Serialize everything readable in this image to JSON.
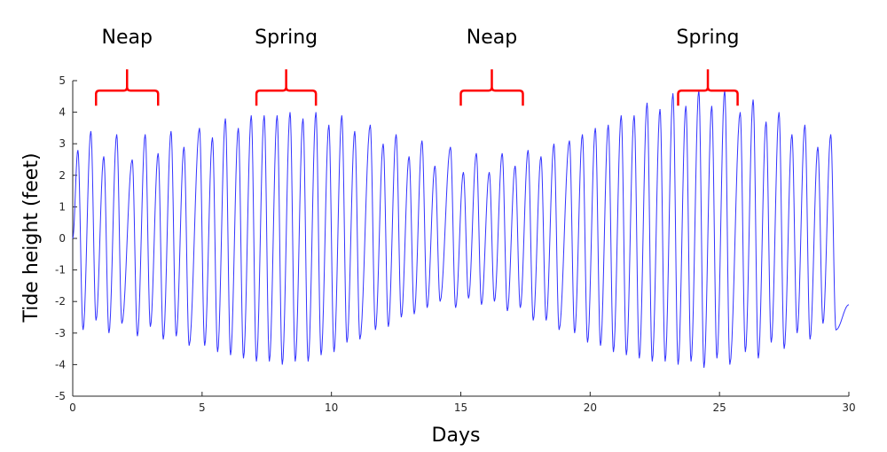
{
  "chart_data": {
    "type": "line",
    "title": "",
    "xlabel": "Days",
    "ylabel": "Tide height (feet)",
    "xlim": [
      0,
      30
    ],
    "ylim": [
      -5,
      5
    ],
    "xticks": [
      0,
      5,
      10,
      15,
      20,
      25,
      30
    ],
    "yticks": [
      -5,
      -4,
      -3,
      -2,
      -1,
      0,
      1,
      2,
      3,
      4,
      5
    ],
    "grid": false,
    "legend": "none",
    "series": [
      {
        "color": "#3333ff",
        "x_start": 0,
        "x_end": 30,
        "period_days": 0.517,
        "peaks": [
          {
            "x": 0.2,
            "y": 2.8
          },
          {
            "x": 0.7,
            "y": 3.4
          },
          {
            "x": 1.2,
            "y": 2.6
          },
          {
            "x": 1.7,
            "y": 3.3
          },
          {
            "x": 2.3,
            "y": 2.5
          },
          {
            "x": 2.8,
            "y": 3.3
          },
          {
            "x": 3.3,
            "y": 2.7
          },
          {
            "x": 3.8,
            "y": 3.4
          },
          {
            "x": 4.3,
            "y": 2.9
          },
          {
            "x": 4.9,
            "y": 3.5
          },
          {
            "x": 5.4,
            "y": 3.2
          },
          {
            "x": 5.9,
            "y": 3.8
          },
          {
            "x": 6.4,
            "y": 3.5
          },
          {
            "x": 6.9,
            "y": 3.9
          },
          {
            "x": 7.4,
            "y": 3.9
          },
          {
            "x": 7.9,
            "y": 3.9
          },
          {
            "x": 8.4,
            "y": 4.0
          },
          {
            "x": 8.9,
            "y": 3.8
          },
          {
            "x": 9.4,
            "y": 4.0
          },
          {
            "x": 9.9,
            "y": 3.6
          },
          {
            "x": 10.4,
            "y": 3.9
          },
          {
            "x": 10.9,
            "y": 3.4
          },
          {
            "x": 11.5,
            "y": 3.6
          },
          {
            "x": 12.0,
            "y": 3.0
          },
          {
            "x": 12.5,
            "y": 3.3
          },
          {
            "x": 13.0,
            "y": 2.6
          },
          {
            "x": 13.5,
            "y": 3.1
          },
          {
            "x": 14.0,
            "y": 2.3
          },
          {
            "x": 14.6,
            "y": 2.9
          },
          {
            "x": 15.1,
            "y": 2.1
          },
          {
            "x": 15.6,
            "y": 2.7
          },
          {
            "x": 16.1,
            "y": 2.1
          },
          {
            "x": 16.6,
            "y": 2.7
          },
          {
            "x": 17.1,
            "y": 2.3
          },
          {
            "x": 17.6,
            "y": 2.8
          },
          {
            "x": 18.1,
            "y": 2.6
          },
          {
            "x": 18.6,
            "y": 3.0
          },
          {
            "x": 19.2,
            "y": 3.1
          },
          {
            "x": 19.7,
            "y": 3.3
          },
          {
            "x": 20.2,
            "y": 3.5
          },
          {
            "x": 20.7,
            "y": 3.6
          },
          {
            "x": 21.2,
            "y": 3.9
          },
          {
            "x": 21.7,
            "y": 3.9
          },
          {
            "x": 22.2,
            "y": 4.3
          },
          {
            "x": 22.7,
            "y": 4.1
          },
          {
            "x": 23.2,
            "y": 4.6
          },
          {
            "x": 23.7,
            "y": 4.2
          },
          {
            "x": 24.2,
            "y": 4.7
          },
          {
            "x": 24.7,
            "y": 4.2
          },
          {
            "x": 25.2,
            "y": 4.7
          },
          {
            "x": 25.8,
            "y": 4.0
          },
          {
            "x": 26.3,
            "y": 4.4
          },
          {
            "x": 26.8,
            "y": 3.7
          },
          {
            "x": 27.3,
            "y": 4.0
          },
          {
            "x": 27.8,
            "y": 3.3
          },
          {
            "x": 28.3,
            "y": 3.6
          },
          {
            "x": 28.8,
            "y": 2.9
          },
          {
            "x": 29.3,
            "y": 3.3
          }
        ],
        "troughs": [
          {
            "x": 0.4,
            "y": -2.9
          },
          {
            "x": 0.9,
            "y": -2.6
          },
          {
            "x": 1.4,
            "y": -3.0
          },
          {
            "x": 1.9,
            "y": -2.7
          },
          {
            "x": 2.5,
            "y": -3.1
          },
          {
            "x": 3.0,
            "y": -2.8
          },
          {
            "x": 3.5,
            "y": -3.2
          },
          {
            "x": 4.0,
            "y": -3.1
          },
          {
            "x": 4.5,
            "y": -3.4
          },
          {
            "x": 5.1,
            "y": -3.4
          },
          {
            "x": 5.6,
            "y": -3.6
          },
          {
            "x": 6.1,
            "y": -3.7
          },
          {
            "x": 6.6,
            "y": -3.8
          },
          {
            "x": 7.1,
            "y": -3.9
          },
          {
            "x": 7.6,
            "y": -3.9
          },
          {
            "x": 8.1,
            "y": -4.0
          },
          {
            "x": 8.6,
            "y": -3.9
          },
          {
            "x": 9.1,
            "y": -3.9
          },
          {
            "x": 9.6,
            "y": -3.7
          },
          {
            "x": 10.1,
            "y": -3.6
          },
          {
            "x": 10.6,
            "y": -3.3
          },
          {
            "x": 11.1,
            "y": -3.2
          },
          {
            "x": 11.7,
            "y": -2.9
          },
          {
            "x": 12.2,
            "y": -2.8
          },
          {
            "x": 12.7,
            "y": -2.5
          },
          {
            "x": 13.2,
            "y": -2.4
          },
          {
            "x": 13.7,
            "y": -2.2
          },
          {
            "x": 14.2,
            "y": -2.0
          },
          {
            "x": 14.8,
            "y": -2.2
          },
          {
            "x": 15.3,
            "y": -1.9
          },
          {
            "x": 15.8,
            "y": -2.1
          },
          {
            "x": 16.3,
            "y": -2.0
          },
          {
            "x": 16.8,
            "y": -2.3
          },
          {
            "x": 17.3,
            "y": -2.2
          },
          {
            "x": 17.8,
            "y": -2.6
          },
          {
            "x": 18.3,
            "y": -2.6
          },
          {
            "x": 18.8,
            "y": -2.9
          },
          {
            "x": 19.4,
            "y": -3.0
          },
          {
            "x": 19.9,
            "y": -3.3
          },
          {
            "x": 20.4,
            "y": -3.4
          },
          {
            "x": 20.9,
            "y": -3.6
          },
          {
            "x": 21.4,
            "y": -3.7
          },
          {
            "x": 21.9,
            "y": -3.8
          },
          {
            "x": 22.4,
            "y": -3.9
          },
          {
            "x": 22.9,
            "y": -3.9
          },
          {
            "x": 23.4,
            "y": -4.0
          },
          {
            "x": 23.9,
            "y": -3.9
          },
          {
            "x": 24.4,
            "y": -4.1
          },
          {
            "x": 24.9,
            "y": -3.8
          },
          {
            "x": 25.4,
            "y": -4.0
          },
          {
            "x": 26.0,
            "y": -3.6
          },
          {
            "x": 26.5,
            "y": -3.8
          },
          {
            "x": 27.0,
            "y": -3.3
          },
          {
            "x": 27.5,
            "y": -3.5
          },
          {
            "x": 28.0,
            "y": -3.0
          },
          {
            "x": 28.5,
            "y": -3.2
          },
          {
            "x": 29.0,
            "y": -2.7
          },
          {
            "x": 29.5,
            "y": -2.9
          }
        ],
        "end_value": -2.1
      }
    ],
    "annotations": [
      {
        "text": "Neap",
        "x_from": 0.9,
        "x_to": 3.3,
        "y": 4.6,
        "color": "#ff0000"
      },
      {
        "text": "Spring",
        "x_from": 7.1,
        "x_to": 9.4,
        "y": 4.6,
        "color": "#ff0000"
      },
      {
        "text": "Neap",
        "x_from": 15.0,
        "x_to": 17.4,
        "y": 4.6,
        "color": "#ff0000"
      },
      {
        "text": "Spring",
        "x_from": 23.4,
        "x_to": 25.7,
        "y": 4.6,
        "color": "#ff0000"
      }
    ]
  }
}
